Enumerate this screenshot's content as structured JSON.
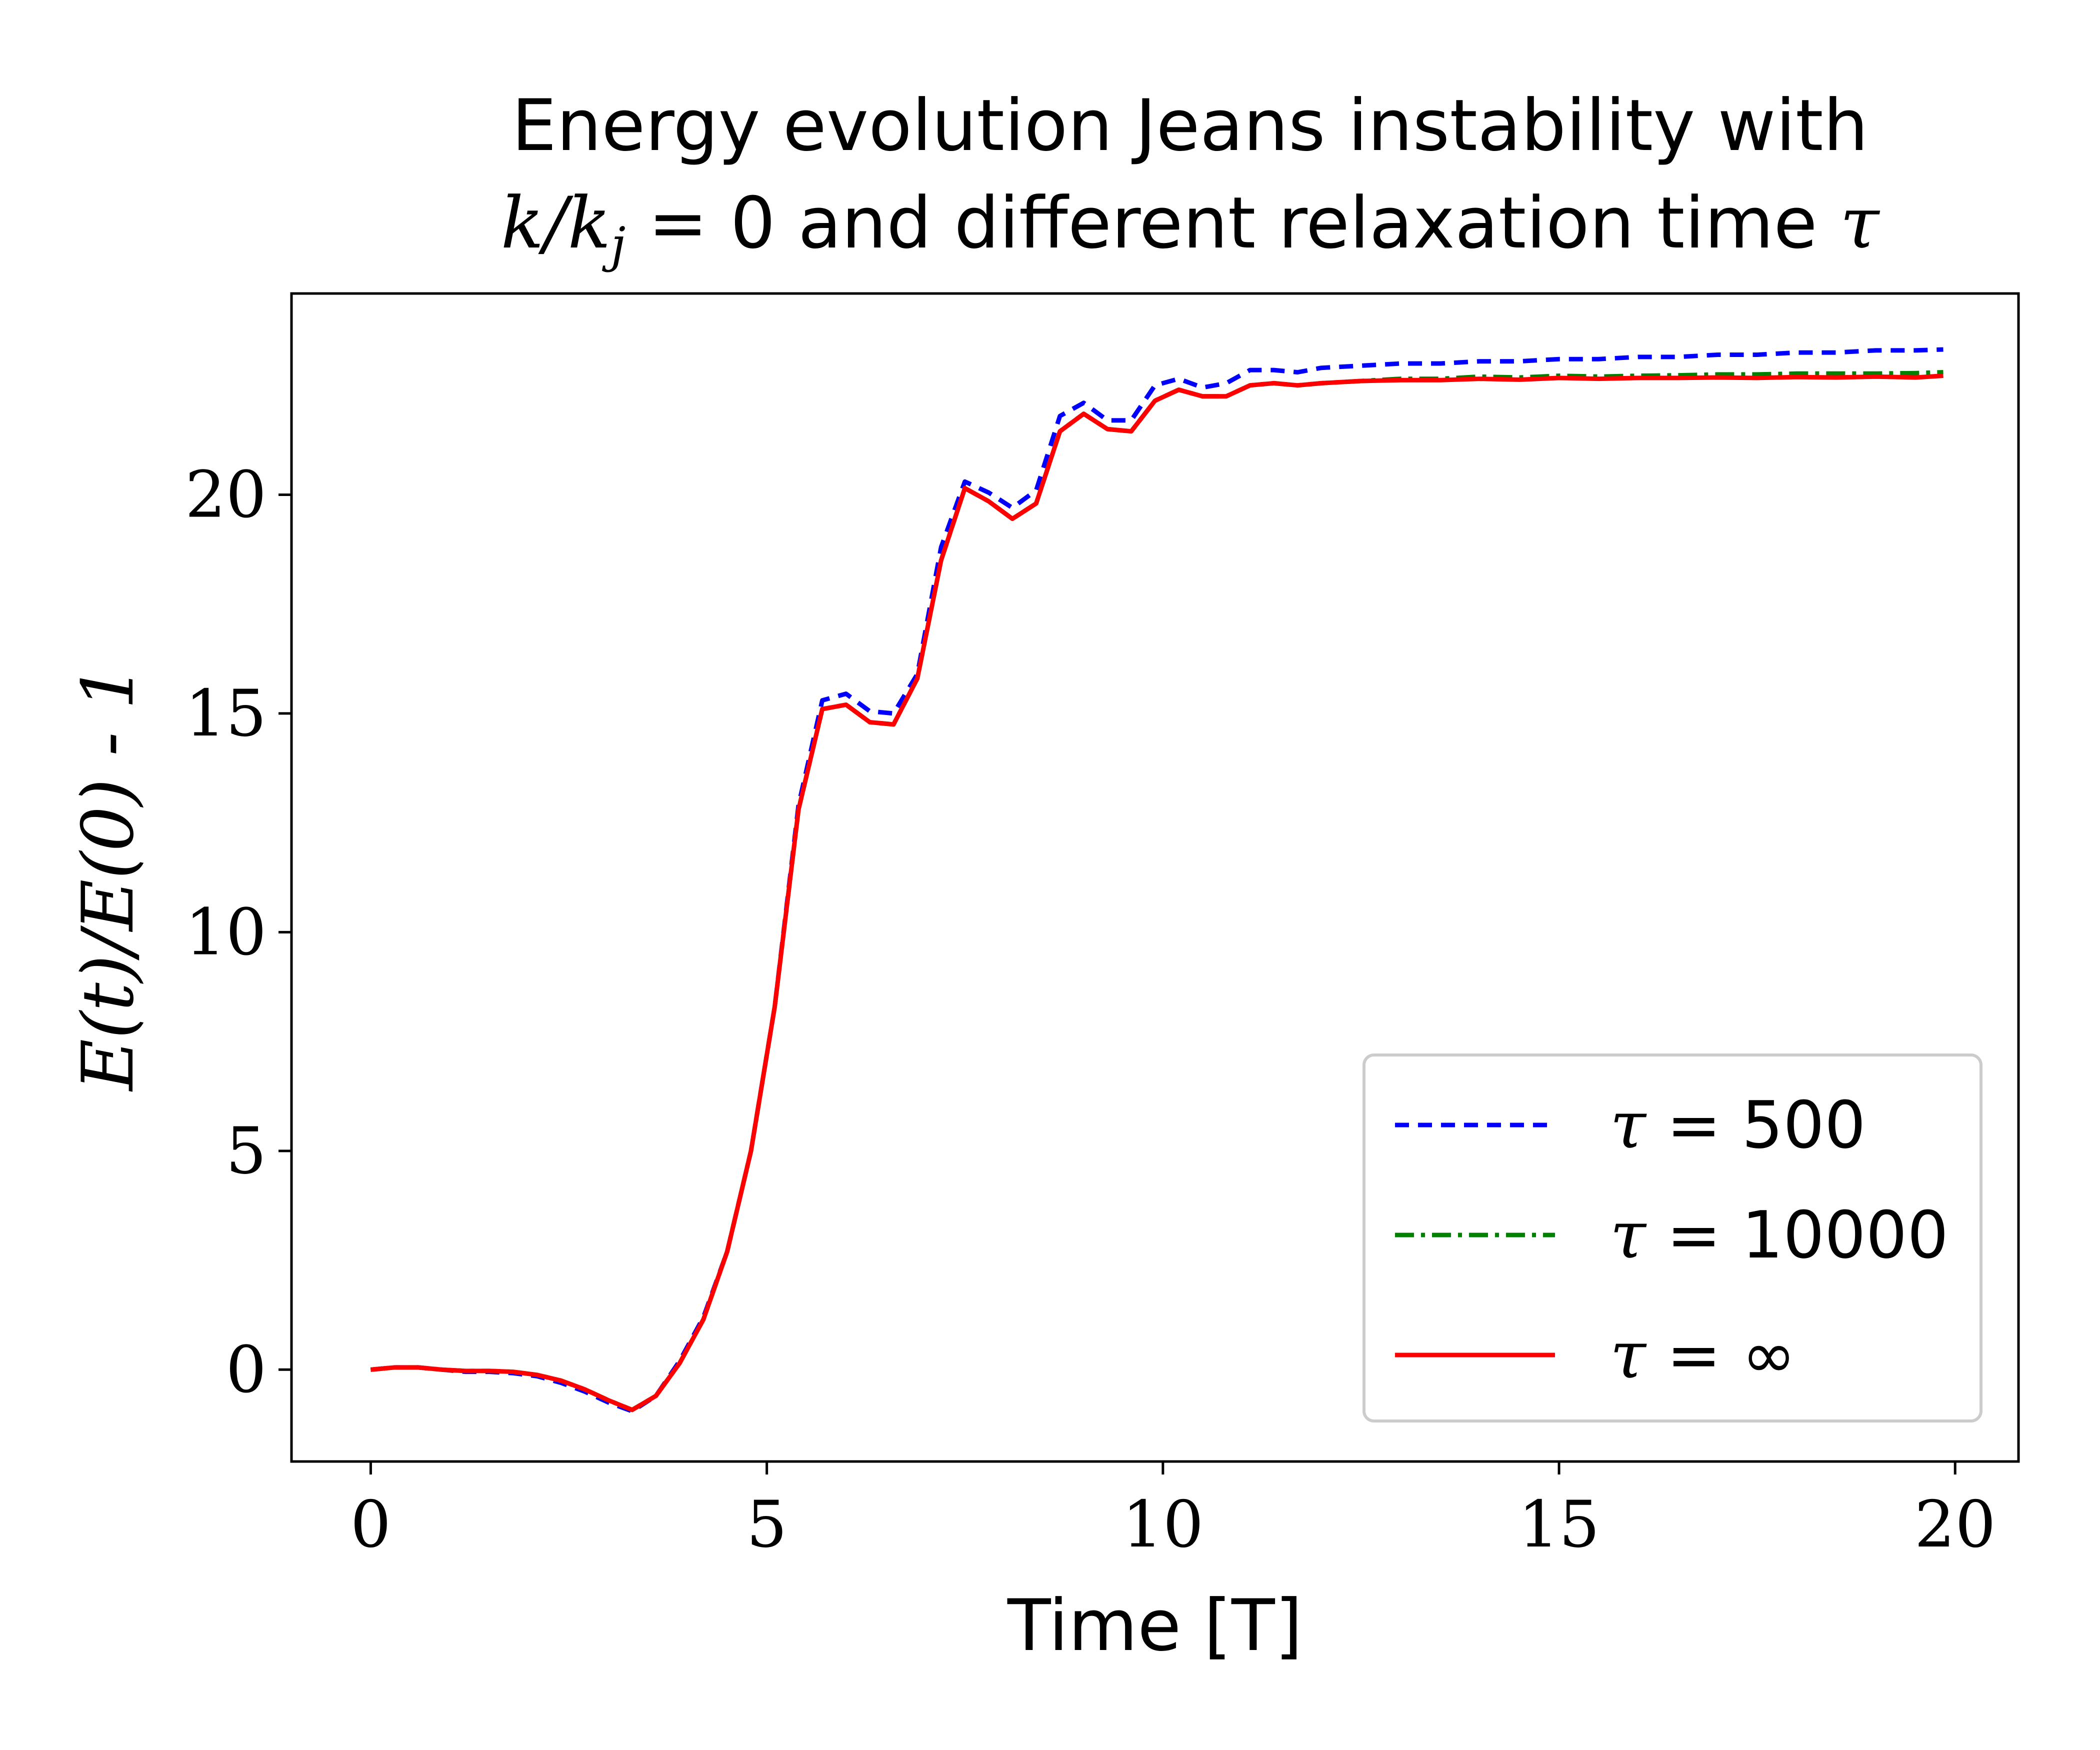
{
  "chart_data": {
    "type": "line",
    "title_line1": "Energy evolution Jeans instability with",
    "title_line2_math": "k/k",
    "title_line2_sub": "j",
    "title_line2_text": " = 0 and different relaxation time ",
    "title_line2_tau": "τ",
    "xlabel": "Time [T]",
    "ylabel": "E(t)/E(0) - 1",
    "xlim": [
      -1,
      20.8
    ],
    "ylim": [
      -2.1,
      24.6
    ],
    "xticks": [
      0,
      5,
      10,
      15,
      20
    ],
    "yticks": [
      0,
      5,
      10,
      15,
      20
    ],
    "grid": false,
    "legend_position": "lower-right",
    "series": [
      {
        "name": "τ = 500",
        "legend_symbol": "τ",
        "legend_value": " = 500",
        "color": "#0000ff",
        "style": "dashed",
        "x": [
          0,
          0.3,
          0.6,
          0.9,
          1.2,
          1.5,
          1.8,
          2.1,
          2.4,
          2.7,
          3.0,
          3.3,
          3.6,
          3.9,
          4.2,
          4.5,
          4.8,
          5.1,
          5.4,
          5.7,
          6.0,
          6.3,
          6.6,
          6.9,
          7.2,
          7.5,
          7.8,
          8.1,
          8.4,
          8.7,
          9.0,
          9.3,
          9.6,
          9.9,
          10.2,
          10.5,
          10.8,
          11.1,
          11.4,
          11.7,
          12.0,
          12.5,
          13.0,
          13.5,
          14.0,
          14.5,
          15.0,
          15.5,
          16.0,
          16.5,
          17.0,
          17.5,
          18.0,
          18.5,
          19.0,
          19.5,
          19.85
        ],
        "y": [
          0,
          0.05,
          0.05,
          0.0,
          -0.05,
          -0.05,
          -0.08,
          -0.15,
          -0.3,
          -0.5,
          -0.75,
          -0.95,
          -0.6,
          0.2,
          1.2,
          2.7,
          5.0,
          8.3,
          12.9,
          15.3,
          15.45,
          15.05,
          15.0,
          15.9,
          18.8,
          20.3,
          20.05,
          19.7,
          20.1,
          21.8,
          22.1,
          21.7,
          21.7,
          22.5,
          22.65,
          22.45,
          22.55,
          22.85,
          22.85,
          22.8,
          22.9,
          22.95,
          23.0,
          23.0,
          23.05,
          23.05,
          23.1,
          23.1,
          23.15,
          23.15,
          23.2,
          23.2,
          23.25,
          23.25,
          23.3,
          23.3,
          23.32
        ]
      },
      {
        "name": "τ = 10000",
        "legend_symbol": "τ",
        "legend_value": " = 10000",
        "color": "#008000",
        "style": "dashdot",
        "x": [
          0,
          0.3,
          0.6,
          0.9,
          1.2,
          1.5,
          1.8,
          2.1,
          2.4,
          2.7,
          3.0,
          3.3,
          3.6,
          3.9,
          4.2,
          4.5,
          4.8,
          5.1,
          5.4,
          5.7,
          6.0,
          6.3,
          6.6,
          6.9,
          7.2,
          7.5,
          7.8,
          8.1,
          8.4,
          8.7,
          9.0,
          9.3,
          9.6,
          9.9,
          10.2,
          10.5,
          10.8,
          11.1,
          11.4,
          11.7,
          12.0,
          12.5,
          13.0,
          13.5,
          14.0,
          14.5,
          15.0,
          15.5,
          16.0,
          16.5,
          17.0,
          17.5,
          18.0,
          18.5,
          19.0,
          19.5,
          19.85
        ],
        "y": [
          0,
          0.05,
          0.05,
          0.0,
          -0.03,
          -0.03,
          -0.05,
          -0.12,
          -0.25,
          -0.45,
          -0.7,
          -0.92,
          -0.6,
          0.15,
          1.15,
          2.7,
          5.0,
          8.3,
          12.8,
          15.1,
          15.2,
          14.8,
          14.75,
          15.8,
          18.5,
          20.15,
          19.85,
          19.45,
          19.8,
          21.45,
          21.85,
          21.5,
          21.45,
          22.15,
          22.4,
          22.25,
          22.25,
          22.5,
          22.55,
          22.5,
          22.55,
          22.6,
          22.65,
          22.65,
          22.7,
          22.68,
          22.72,
          22.7,
          22.72,
          22.73,
          22.75,
          22.75,
          22.77,
          22.77,
          22.77,
          22.78,
          22.8
        ]
      },
      {
        "name": "τ = ∞",
        "legend_symbol": "τ",
        "legend_value": " = ∞",
        "color": "#ff0000",
        "style": "solid",
        "x": [
          0,
          0.3,
          0.6,
          0.9,
          1.2,
          1.5,
          1.8,
          2.1,
          2.4,
          2.7,
          3.0,
          3.3,
          3.6,
          3.9,
          4.2,
          4.5,
          4.8,
          5.1,
          5.4,
          5.7,
          6.0,
          6.3,
          6.6,
          6.9,
          7.2,
          7.5,
          7.8,
          8.1,
          8.4,
          8.7,
          9.0,
          9.3,
          9.6,
          9.9,
          10.2,
          10.5,
          10.8,
          11.1,
          11.4,
          11.7,
          12.0,
          12.5,
          13.0,
          13.5,
          14.0,
          14.5,
          15.0,
          15.5,
          16.0,
          16.5,
          17.0,
          17.5,
          18.0,
          18.5,
          19.0,
          19.5,
          19.85
        ],
        "y": [
          0,
          0.05,
          0.05,
          0.0,
          -0.03,
          -0.03,
          -0.05,
          -0.12,
          -0.25,
          -0.45,
          -0.7,
          -0.92,
          -0.6,
          0.15,
          1.15,
          2.7,
          5.0,
          8.3,
          12.8,
          15.1,
          15.2,
          14.8,
          14.75,
          15.8,
          18.5,
          20.15,
          19.85,
          19.45,
          19.8,
          21.45,
          21.85,
          21.5,
          21.45,
          22.15,
          22.4,
          22.25,
          22.25,
          22.5,
          22.55,
          22.5,
          22.55,
          22.6,
          22.62,
          22.62,
          22.65,
          22.63,
          22.67,
          22.65,
          22.67,
          22.67,
          22.68,
          22.67,
          22.69,
          22.68,
          22.7,
          22.68,
          22.72
        ]
      }
    ]
  }
}
